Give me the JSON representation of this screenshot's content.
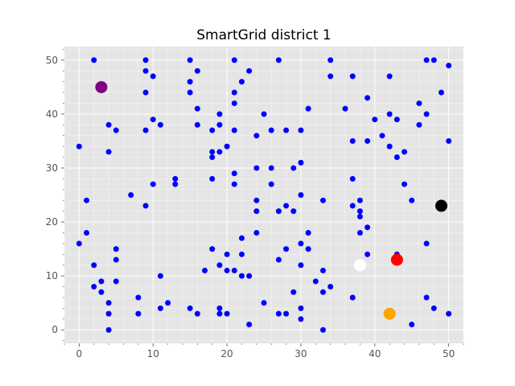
{
  "chart_data": {
    "type": "scatter",
    "title": "SmartGrid district 1",
    "xlabel": "",
    "ylabel": "",
    "xlim": [
      -2,
      52
    ],
    "ylim": [
      -2.5,
      52.5
    ],
    "x_ticks": [
      0,
      10,
      20,
      30,
      40,
      50
    ],
    "y_ticks": [
      0,
      10,
      20,
      30,
      40,
      50
    ],
    "x_tick_labels": [
      "0",
      "10",
      "20",
      "30",
      "40",
      "50"
    ],
    "y_tick_labels": [
      "0",
      "10",
      "20",
      "30",
      "40",
      "50"
    ],
    "grid": true,
    "legend": "none",
    "background_color": "#e5e5e5",
    "grid_color": "#ffffff",
    "series": [
      {
        "color": "#0000ff",
        "marker_size": "small",
        "points": [
          [
            2,
            50
          ],
          [
            9,
            50
          ],
          [
            15,
            50
          ],
          [
            21,
            50
          ],
          [
            27,
            50
          ],
          [
            34,
            50
          ],
          [
            47,
            50
          ],
          [
            48,
            50
          ],
          [
            50,
            49
          ],
          [
            9,
            48
          ],
          [
            16,
            48
          ],
          [
            23,
            48
          ],
          [
            10,
            47
          ],
          [
            22,
            46
          ],
          [
            15,
            46
          ],
          [
            21,
            44
          ],
          [
            9,
            44
          ],
          [
            15,
            44
          ],
          [
            34,
            47
          ],
          [
            37,
            47
          ],
          [
            42,
            47
          ],
          [
            49,
            44
          ],
          [
            21,
            42
          ],
          [
            39,
            43
          ],
          [
            46,
            42
          ],
          [
            16,
            41
          ],
          [
            31,
            41
          ],
          [
            36,
            41
          ],
          [
            19,
            40
          ],
          [
            25,
            40
          ],
          [
            42,
            40
          ],
          [
            47,
            40
          ],
          [
            40,
            39
          ],
          [
            43,
            39
          ],
          [
            4,
            38
          ],
          [
            11,
            38
          ],
          [
            16,
            38
          ],
          [
            19,
            38
          ],
          [
            46,
            38
          ],
          [
            5,
            37
          ],
          [
            9,
            37
          ],
          [
            10,
            39
          ],
          [
            18,
            37
          ],
          [
            21,
            37
          ],
          [
            26,
            37
          ],
          [
            28,
            37
          ],
          [
            30,
            37
          ],
          [
            24,
            36
          ],
          [
            41,
            36
          ],
          [
            0,
            34
          ],
          [
            20,
            34
          ],
          [
            37,
            35
          ],
          [
            39,
            35
          ],
          [
            42,
            34
          ],
          [
            50,
            35
          ],
          [
            4,
            33
          ],
          [
            18,
            33
          ],
          [
            19,
            33
          ],
          [
            18,
            32
          ],
          [
            44,
            33
          ],
          [
            43,
            32
          ],
          [
            30,
            31
          ],
          [
            24,
            30
          ],
          [
            26,
            30
          ],
          [
            29,
            30
          ],
          [
            21,
            29
          ],
          [
            13,
            28
          ],
          [
            18,
            28
          ],
          [
            37,
            28
          ],
          [
            10,
            27
          ],
          [
            13,
            27
          ],
          [
            21,
            27
          ],
          [
            26,
            27
          ],
          [
            44,
            27
          ],
          [
            7,
            25
          ],
          [
            30,
            25
          ],
          [
            1,
            24
          ],
          [
            24,
            24
          ],
          [
            33,
            24
          ],
          [
            38,
            24
          ],
          [
            45,
            24
          ],
          [
            9,
            23
          ],
          [
            28,
            23
          ],
          [
            37,
            23
          ],
          [
            24,
            22
          ],
          [
            27,
            22
          ],
          [
            29,
            22
          ],
          [
            38,
            22
          ],
          [
            38,
            21
          ],
          [
            39,
            19
          ],
          [
            1,
            18
          ],
          [
            24,
            18
          ],
          [
            31,
            18
          ],
          [
            38,
            18
          ],
          [
            22,
            17
          ],
          [
            0,
            16
          ],
          [
            30,
            16
          ],
          [
            47,
            16
          ],
          [
            5,
            15
          ],
          [
            18,
            15
          ],
          [
            28,
            15
          ],
          [
            31,
            15
          ],
          [
            20,
            14
          ],
          [
            22,
            14
          ],
          [
            39,
            14
          ],
          [
            43,
            14
          ],
          [
            5,
            13
          ],
          [
            27,
            13
          ],
          [
            2,
            12
          ],
          [
            19,
            12
          ],
          [
            30,
            12
          ],
          [
            17,
            11
          ],
          [
            20,
            11
          ],
          [
            21,
            11
          ],
          [
            33,
            11
          ],
          [
            11,
            10
          ],
          [
            22,
            10
          ],
          [
            23,
            10
          ],
          [
            3,
            9
          ],
          [
            5,
            9
          ],
          [
            32,
            9
          ],
          [
            2,
            8
          ],
          [
            34,
            8
          ],
          [
            3,
            7
          ],
          [
            29,
            7
          ],
          [
            33,
            7
          ],
          [
            8,
            6
          ],
          [
            37,
            6
          ],
          [
            47,
            6
          ],
          [
            4,
            5
          ],
          [
            12,
            5
          ],
          [
            25,
            5
          ],
          [
            15,
            4
          ],
          [
            19,
            4
          ],
          [
            30,
            4
          ],
          [
            48,
            4
          ],
          [
            11,
            4
          ],
          [
            4,
            3
          ],
          [
            8,
            3
          ],
          [
            16,
            3
          ],
          [
            19,
            3
          ],
          [
            20,
            3
          ],
          [
            27,
            3
          ],
          [
            28,
            3
          ],
          [
            50,
            3
          ],
          [
            30,
            2
          ],
          [
            23,
            1
          ],
          [
            45,
            1
          ],
          [
            4,
            0
          ],
          [
            33,
            0
          ]
        ]
      },
      {
        "color": "#800080",
        "marker_size": "large",
        "points": [
          [
            3,
            45
          ]
        ]
      },
      {
        "color": "#000000",
        "marker_size": "large",
        "points": [
          [
            49,
            23
          ]
        ]
      },
      {
        "color": "#ffffff",
        "marker_size": "large",
        "points": [
          [
            38,
            12
          ]
        ]
      },
      {
        "color": "#ff0000",
        "marker_size": "large",
        "points": [
          [
            43,
            13
          ]
        ]
      },
      {
        "color": "#ffa500",
        "marker_size": "large",
        "points": [
          [
            42,
            3
          ]
        ]
      }
    ]
  }
}
